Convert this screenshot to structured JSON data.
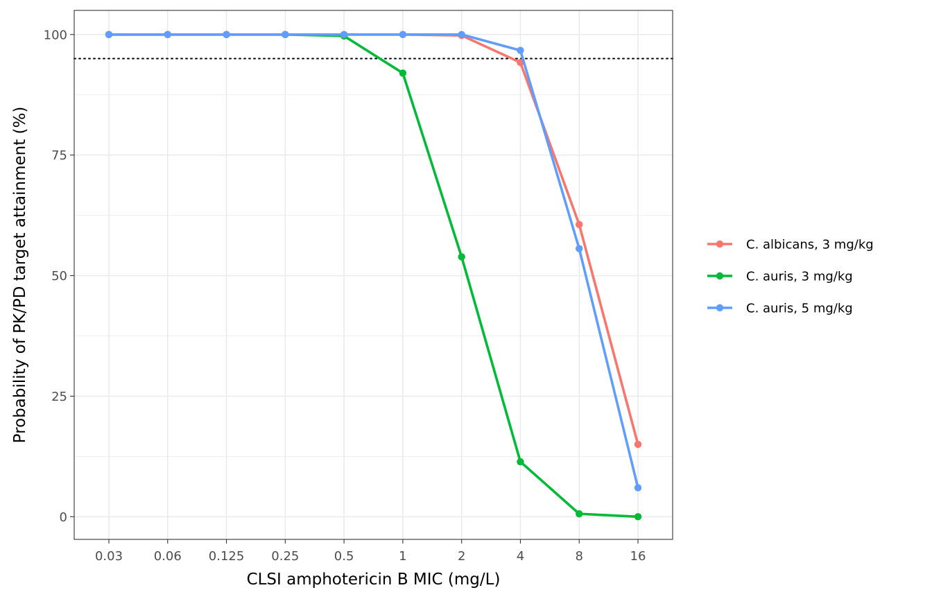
{
  "chart_data": {
    "type": "line",
    "title": "",
    "xlabel": "CLSI amphotericin B MIC (mg/L)",
    "ylabel": "Probability of PK/PD target attainment (%)",
    "categories": [
      "0.03",
      "0.06",
      "0.125",
      "0.25",
      "0.5",
      "1",
      "2",
      "4",
      "8",
      "16"
    ],
    "ylim": [
      -4.7,
      105
    ],
    "y_ticks": [
      0,
      25,
      50,
      75,
      100
    ],
    "y_tick_labels": [
      "0",
      "25",
      "50",
      "75",
      "100"
    ],
    "reference_line": {
      "y": 95,
      "style": "dotted",
      "color": "#000000"
    },
    "grid": true,
    "legend_position": "right",
    "series": [
      {
        "name": "C. albicans, 3 mg/kg",
        "color": "#F8766D",
        "values": [
          100,
          100,
          100,
          100,
          100,
          100,
          99.8,
          94.2,
          60.6,
          15
        ]
      },
      {
        "name": "C. auris, 3 mg/kg",
        "color": "#00BA38",
        "values": [
          100,
          100,
          100,
          100,
          99.7,
          92,
          53.9,
          11.4,
          0.6,
          0
        ]
      },
      {
        "name": "C. auris, 5 mg/kg",
        "color": "#619CFF",
        "values": [
          100,
          100,
          100,
          100,
          100,
          100,
          100,
          96.7,
          55.6,
          6
        ]
      }
    ]
  }
}
